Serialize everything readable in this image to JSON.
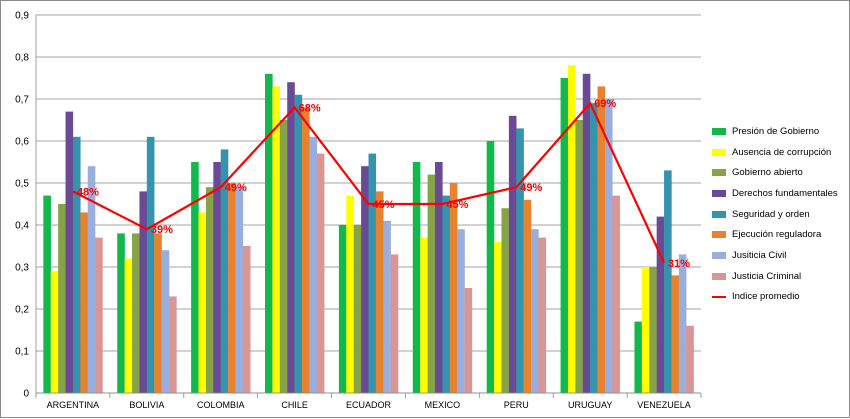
{
  "chart_data": {
    "type": "bar",
    "categories": [
      "ARGENTINA",
      "BOLIVIA",
      "COLOMBIA",
      "CHILE",
      "ECUADOR",
      "MEXICO",
      "PERU",
      "URUGUAY",
      "VENEZUELA"
    ],
    "ylim": [
      0,
      0.9
    ],
    "yticks": [
      "0",
      "0,1",
      "0,2",
      "0,3",
      "0,4",
      "0,5",
      "0,6",
      "0,7",
      "0,8",
      "0,9"
    ],
    "grid": true,
    "legend_position": "right",
    "series": [
      {
        "name": "Presión de Gobierno",
        "color": "#11b84b",
        "values": [
          0.47,
          0.38,
          0.55,
          0.76,
          0.4,
          0.55,
          0.6,
          0.75,
          0.17
        ]
      },
      {
        "name": "Ausencia de corrupción",
        "color": "#ffff00",
        "values": [
          0.29,
          0.32,
          0.43,
          0.73,
          0.47,
          0.37,
          0.36,
          0.78,
          0.3
        ]
      },
      {
        "name": "Gobierno abierto",
        "color": "#86a347",
        "values": [
          0.45,
          0.38,
          0.49,
          0.65,
          0.4,
          0.52,
          0.44,
          0.65,
          0.3
        ]
      },
      {
        "name": "Derechos fundamentales",
        "color": "#6a4a94",
        "values": [
          0.67,
          0.48,
          0.55,
          0.74,
          0.54,
          0.55,
          0.66,
          0.76,
          0.42
        ]
      },
      {
        "name": "Seguridad y orden",
        "color": "#3494ad",
        "values": [
          0.61,
          0.61,
          0.58,
          0.71,
          0.57,
          0.47,
          0.63,
          0.69,
          0.53
        ]
      },
      {
        "name": "Ejecución reguladora",
        "color": "#e7832f",
        "values": [
          0.43,
          0.38,
          0.5,
          0.68,
          0.48,
          0.5,
          0.46,
          0.73,
          0.28
        ]
      },
      {
        "name": "Jusiticia Civil",
        "color": "#9aaedd",
        "values": [
          0.54,
          0.34,
          0.49,
          0.61,
          0.41,
          0.39,
          0.39,
          0.7,
          0.33
        ]
      },
      {
        "name": "Justicia Criminal",
        "color": "#da9695",
        "values": [
          0.37,
          0.23,
          0.35,
          0.57,
          0.33,
          0.25,
          0.37,
          0.47,
          0.16
        ]
      }
    ],
    "line": {
      "name": "Indice promedio",
      "color": "#ff0000",
      "values": [
        0.48,
        0.39,
        0.49,
        0.68,
        0.45,
        0.45,
        0.49,
        0.69,
        0.31
      ],
      "labels": [
        "48%",
        "39%",
        "49%",
        "68%",
        "45%",
        "45%",
        "49%",
        "69%",
        "31%"
      ]
    }
  }
}
